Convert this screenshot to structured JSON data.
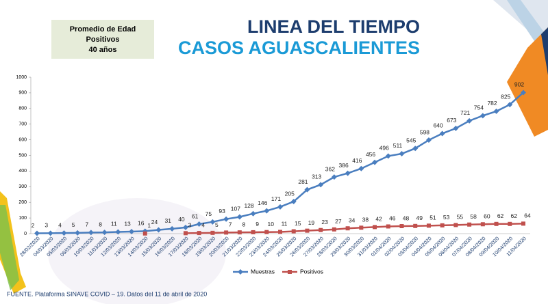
{
  "chart_data": {
    "type": "line",
    "title": "LINEA DEL TIEMPO",
    "subtitle": "CASOS AGUASCALIENTES",
    "categories": [
      "28/02/2020",
      "04/03/2020",
      "05/03/2020",
      "06/03/2020",
      "10/03/2020",
      "11/03/2020",
      "12/03/2020",
      "13/03/2020",
      "14/03/2020",
      "15/03/2020",
      "16/03/2020",
      "17/03/2020",
      "18/03/2020",
      "19/03/2020",
      "20/03/2020",
      "21/03/2020",
      "22/03/2020",
      "23/03/2020",
      "24/03/2020",
      "25/03/2020",
      "26/03/2020",
      "27/03/2020",
      "28/03/2020",
      "29/03/2020",
      "30/03/2020",
      "31/03/2020",
      "01/04/2020",
      "02/04/2020",
      "03/04/2020",
      "04/04/2020",
      "05/04/2020",
      "06/04/2020",
      "07/04/2020",
      "08/04/2020",
      "09/04/2020",
      "10/04/2020",
      "11/04/2020"
    ],
    "series": [
      {
        "name": "Muestras",
        "color": "#4a7ebf",
        "marker": "diamond",
        "values": [
          2,
          3,
          4,
          5,
          7,
          8,
          11,
          13,
          16,
          24,
          31,
          40,
          61,
          75,
          93,
          107,
          128,
          146,
          171,
          205,
          281,
          313,
          362,
          386,
          416,
          456,
          496,
          511,
          545,
          598,
          640,
          673,
          721,
          754,
          782,
          825,
          902
        ]
      },
      {
        "name": "Positivos",
        "color": "#c0504d",
        "marker": "square",
        "values": [
          null,
          null,
          null,
          null,
          null,
          null,
          null,
          null,
          1,
          null,
          null,
          3,
          4,
          5,
          7,
          8,
          9,
          10,
          11,
          15,
          19,
          23,
          27,
          34,
          38,
          42,
          46,
          48,
          49,
          51,
          53,
          55,
          58,
          60,
          62,
          62,
          64
        ]
      }
    ],
    "ylim": [
      0,
      1000
    ],
    "yticks": [
      0,
      100,
      200,
      300,
      400,
      500,
      600,
      700,
      800,
      900,
      1000
    ],
    "legend": "bottom"
  },
  "info_box": {
    "lines": [
      "Promedio de Edad",
      "Positivos",
      "40 años"
    ]
  },
  "footer": "FUENTE. Plataforma SINAVE COVID – 19. Datos del 11 de abril de 2020"
}
